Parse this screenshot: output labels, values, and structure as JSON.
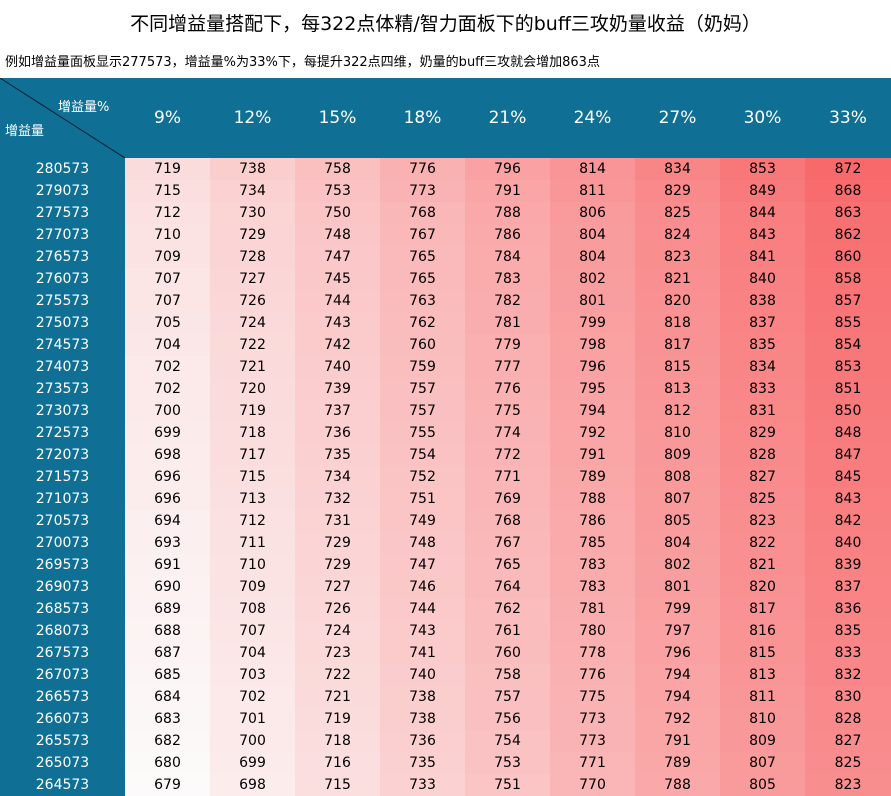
{
  "title": "不同增益量搭配下，每322点体精/智力面板下的buff三攻奶量收益（奶妈）",
  "subtitle": "例如增益量面板显示277573，增益量%为33%下，每提升322点四维，奶量的buff三攻就会增加863点",
  "corner": {
    "top_label": "增益量%",
    "left_label": "增益量"
  },
  "colors": {
    "header_bg": "#0f6f94",
    "header_text": "#ffffff"
  },
  "columns": [
    "9%",
    "12%",
    "15%",
    "18%",
    "21%",
    "24%",
    "27%",
    "30%",
    "33%"
  ],
  "rows": [
    {
      "label": "280573",
      "values": [
        719,
        738,
        758,
        776,
        796,
        814,
        834,
        853,
        872
      ]
    },
    {
      "label": "279073",
      "values": [
        715,
        734,
        753,
        773,
        791,
        811,
        829,
        849,
        868
      ]
    },
    {
      "label": "277573",
      "values": [
        712,
        730,
        750,
        768,
        788,
        806,
        825,
        844,
        863
      ]
    },
    {
      "label": "277073",
      "values": [
        710,
        729,
        748,
        767,
        786,
        804,
        824,
        843,
        862
      ]
    },
    {
      "label": "276573",
      "values": [
        709,
        728,
        747,
        765,
        784,
        804,
        823,
        841,
        860
      ]
    },
    {
      "label": "276073",
      "values": [
        707,
        727,
        745,
        765,
        783,
        802,
        821,
        840,
        858
      ]
    },
    {
      "label": "275573",
      "values": [
        707,
        726,
        744,
        763,
        782,
        801,
        820,
        838,
        857
      ]
    },
    {
      "label": "275073",
      "values": [
        705,
        724,
        743,
        762,
        781,
        799,
        818,
        837,
        855
      ]
    },
    {
      "label": "274573",
      "values": [
        704,
        722,
        742,
        760,
        779,
        798,
        817,
        835,
        854
      ]
    },
    {
      "label": "274073",
      "values": [
        702,
        721,
        740,
        759,
        777,
        796,
        815,
        834,
        853
      ]
    },
    {
      "label": "273573",
      "values": [
        702,
        720,
        739,
        757,
        776,
        795,
        813,
        833,
        851
      ]
    },
    {
      "label": "273073",
      "values": [
        700,
        719,
        737,
        757,
        775,
        794,
        812,
        831,
        850
      ]
    },
    {
      "label": "272573",
      "values": [
        699,
        718,
        736,
        755,
        774,
        792,
        810,
        829,
        848
      ]
    },
    {
      "label": "272073",
      "values": [
        698,
        717,
        735,
        754,
        772,
        791,
        809,
        828,
        847
      ]
    },
    {
      "label": "271573",
      "values": [
        696,
        715,
        734,
        752,
        771,
        789,
        808,
        827,
        845
      ]
    },
    {
      "label": "271073",
      "values": [
        696,
        713,
        732,
        751,
        769,
        788,
        807,
        825,
        843
      ]
    },
    {
      "label": "270573",
      "values": [
        694,
        712,
        731,
        749,
        768,
        786,
        805,
        823,
        842
      ]
    },
    {
      "label": "270073",
      "values": [
        693,
        711,
        729,
        748,
        767,
        785,
        804,
        822,
        840
      ]
    },
    {
      "label": "269573",
      "values": [
        691,
        710,
        729,
        747,
        765,
        783,
        802,
        821,
        839
      ]
    },
    {
      "label": "269073",
      "values": [
        690,
        709,
        727,
        746,
        764,
        783,
        801,
        820,
        837
      ]
    },
    {
      "label": "268573",
      "values": [
        689,
        708,
        726,
        744,
        762,
        781,
        799,
        817,
        836
      ]
    },
    {
      "label": "268073",
      "values": [
        688,
        707,
        724,
        743,
        761,
        780,
        797,
        816,
        835
      ]
    },
    {
      "label": "267573",
      "values": [
        687,
        704,
        723,
        741,
        760,
        778,
        796,
        815,
        833
      ]
    },
    {
      "label": "267073",
      "values": [
        685,
        703,
        722,
        740,
        758,
        776,
        794,
        813,
        832
      ]
    },
    {
      "label": "266573",
      "values": [
        684,
        702,
        721,
        738,
        757,
        775,
        794,
        811,
        830
      ]
    },
    {
      "label": "266073",
      "values": [
        683,
        701,
        719,
        738,
        756,
        773,
        792,
        810,
        828
      ]
    },
    {
      "label": "265573",
      "values": [
        682,
        700,
        718,
        736,
        754,
        773,
        791,
        809,
        827
      ]
    },
    {
      "label": "265073",
      "values": [
        680,
        699,
        716,
        735,
        753,
        771,
        789,
        807,
        825
      ]
    },
    {
      "label": "264573",
      "values": [
        679,
        698,
        715,
        733,
        751,
        770,
        788,
        805,
        823
      ]
    }
  ]
}
